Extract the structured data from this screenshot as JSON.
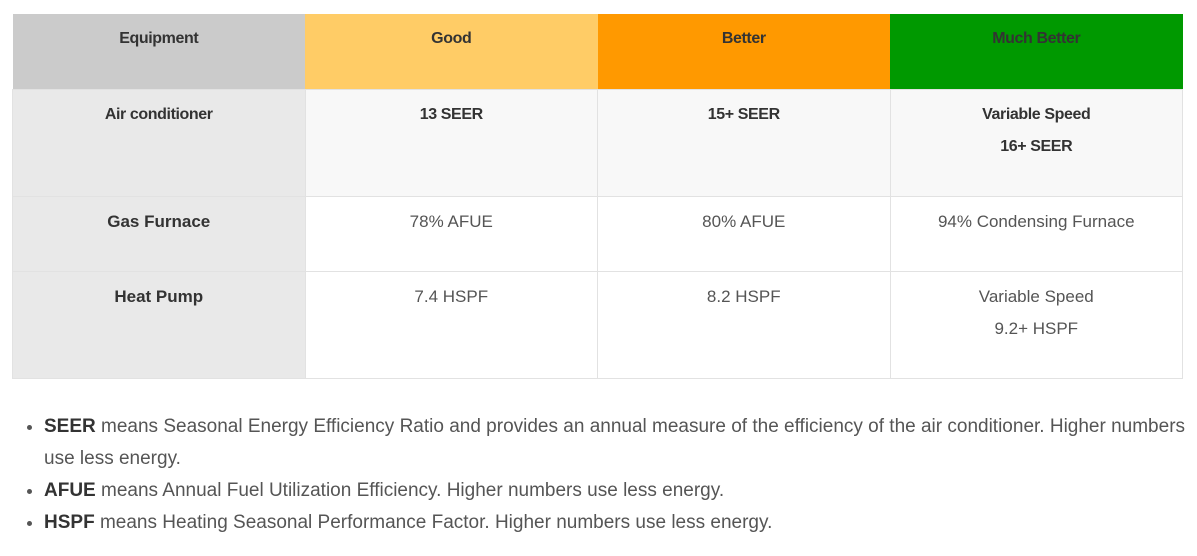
{
  "table": {
    "header": [
      "Equipment",
      "Good",
      "Better",
      "Much Better"
    ],
    "rows": [
      [
        [
          "Air conditioner"
        ],
        [
          "13 SEER"
        ],
        [
          "15+ SEER"
        ],
        [
          "Variable Speed",
          "16+ SEER"
        ]
      ],
      [
        [
          "Gas Furnace"
        ],
        [
          "78% AFUE"
        ],
        [
          "80% AFUE"
        ],
        [
          "94% Condensing Furnace"
        ]
      ],
      [
        [
          "Heat Pump"
        ],
        [
          "7.4 HSPF"
        ],
        [
          "8.2 HSPF"
        ],
        [
          "Variable Speed",
          "9.2+ HSPF"
        ]
      ]
    ]
  },
  "notes": [
    {
      "term": "SEER",
      "text": "means Seasonal Energy Efficiency Ratio and provides an annual measure of the efficiency of the air conditioner. Higher numbers use less energy."
    },
    {
      "term": "AFUE",
      "text": "means Annual Fuel Utilization Efficiency. Higher numbers use less energy."
    },
    {
      "term": "HSPF",
      "text": "means Heating Seasonal Performance Factor. Higher numbers use less energy."
    }
  ]
}
